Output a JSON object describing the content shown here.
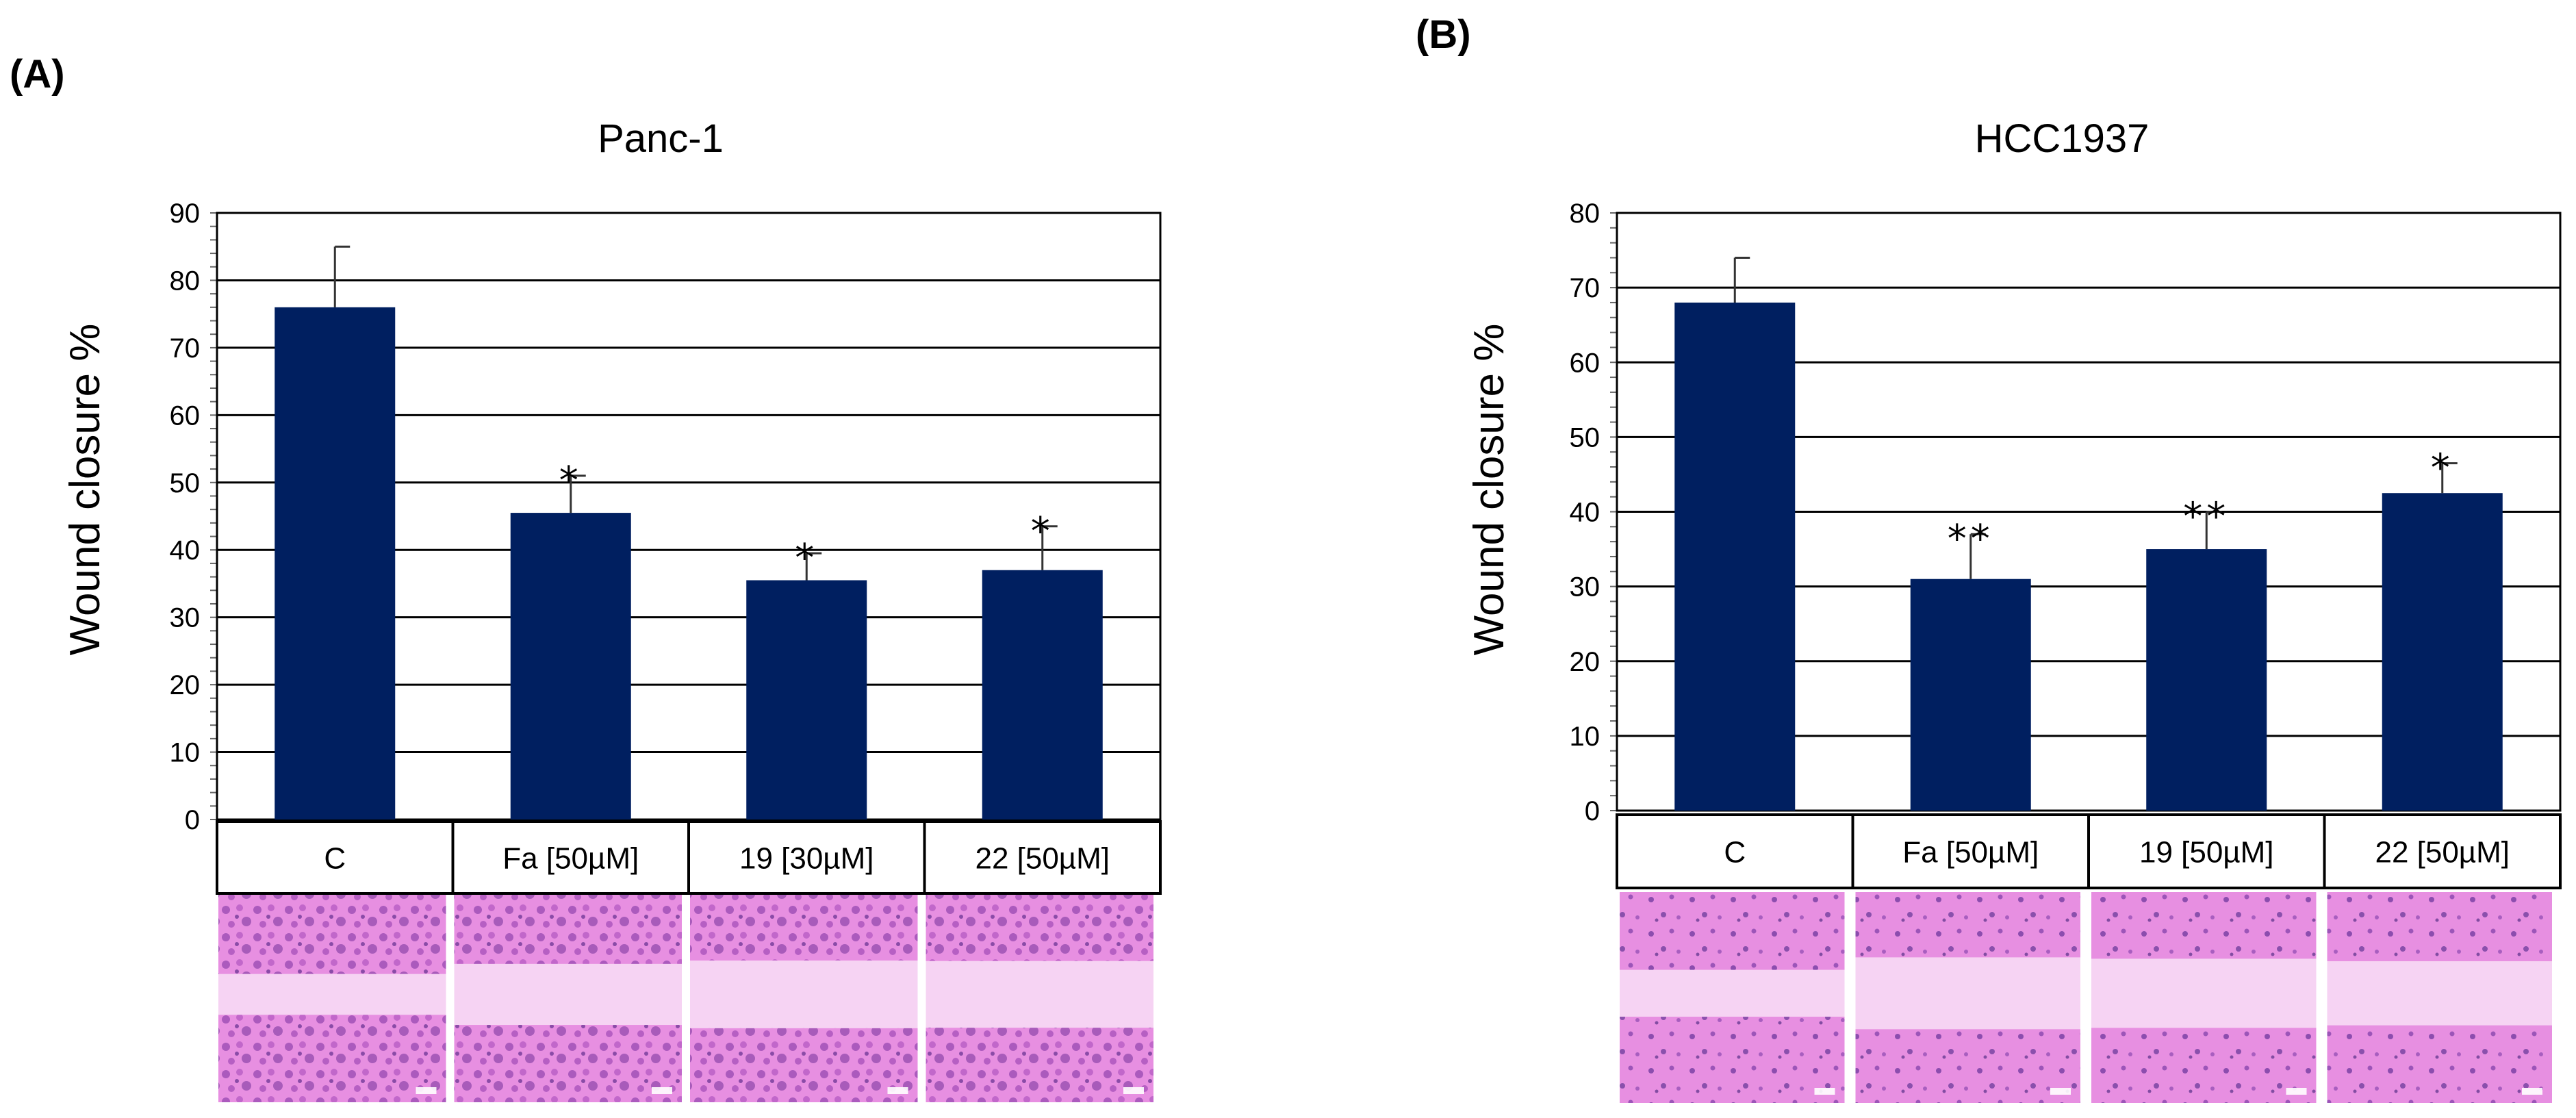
{
  "panels": [
    {
      "label": "(A)"
    },
    {
      "label": "(B)"
    }
  ],
  "colors": {
    "bar": "#001f60",
    "error": "#333333",
    "grid": "#000000",
    "stain_light": "#f6d3f3",
    "stain_mid": "#e78fe1",
    "stain_dark": "#b435b6",
    "stain_cell": "#5a2a92"
  },
  "chart_data": [
    {
      "type": "bar",
      "title": "Panc-1",
      "xlabel": "",
      "ylabel": "Wound closure %",
      "ylim": [
        0,
        90
      ],
      "yticks": [
        0,
        10,
        20,
        30,
        40,
        50,
        60,
        70,
        80,
        90
      ],
      "grid": true,
      "categories": [
        "C",
        "Fa [50µM]",
        "19 [30µM]",
        "22 [50µM]"
      ],
      "values": [
        76,
        45.5,
        35.5,
        37
      ],
      "errors": [
        9,
        5.5,
        4,
        6.5
      ],
      "significance": [
        "",
        "*",
        "*",
        "*"
      ],
      "images_row": true
    },
    {
      "type": "bar",
      "title": "HCC1937",
      "xlabel": "",
      "ylabel": "Wound closure %",
      "ylim": [
        0,
        80
      ],
      "yticks": [
        0,
        10,
        20,
        30,
        40,
        50,
        60,
        70,
        80
      ],
      "grid": true,
      "categories": [
        "C",
        "Fa [50µM]",
        "19 [50µM]",
        "22 [50µM]"
      ],
      "values": [
        68,
        31,
        35,
        42.5
      ],
      "errors": [
        6,
        6,
        5,
        4
      ],
      "significance": [
        "",
        "**",
        "**",
        "*"
      ],
      "images_row": true
    }
  ]
}
